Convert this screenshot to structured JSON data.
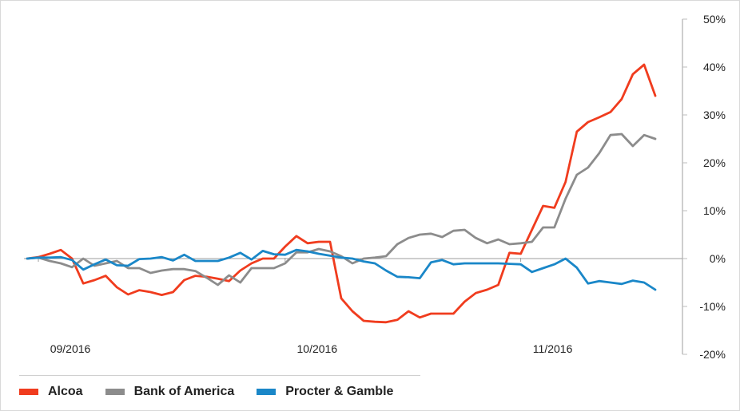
{
  "chart_data": {
    "type": "line",
    "x_tick_labels": [
      "09/2016",
      "10/2016",
      "11/2016"
    ],
    "y_ticks": [
      50,
      40,
      30,
      20,
      10,
      0,
      -10,
      -20
    ],
    "y_tick_labels": [
      "50%",
      "40%",
      "30%",
      "20%",
      "10%",
      "0%",
      "-10%",
      "-20%"
    ],
    "ylim": [
      -20,
      50
    ],
    "y_axis_side": "right",
    "grid": false,
    "zero_line": true,
    "legend_position": "bottom-left",
    "series": [
      {
        "name": "Alcoa",
        "color": "#f03c1e",
        "values": [
          0,
          0.3,
          1,
          1.8,
          0,
          -5.2,
          -4.5,
          -3.6,
          -6,
          -7.5,
          -6.6,
          -7,
          -7.6,
          -7,
          -4.5,
          -3.6,
          -3.8,
          -4.2,
          -4.7,
          -2.5,
          -1,
          0,
          0,
          2.5,
          4.7,
          3.2,
          3.5,
          3.5,
          -8.3,
          -11,
          -13,
          -13.2,
          -13.3,
          -12.8,
          -11,
          -12.3,
          -11.5,
          -11.5,
          -11.5,
          -9,
          -7.2,
          -6.5,
          -5.5,
          1.2,
          1,
          6,
          11,
          10.6,
          16,
          26.5,
          28.5,
          29.5,
          30.6,
          33.3,
          38.5,
          40.5,
          34
        ]
      },
      {
        "name": "Bank of America",
        "color": "#8c8c8c",
        "values": [
          0,
          0.2,
          -0.5,
          -1,
          -1.8,
          0,
          -1.5,
          -1,
          -0.5,
          -2,
          -2,
          -3,
          -2.5,
          -2.2,
          -2.2,
          -2.6,
          -4,
          -5.5,
          -3.5,
          -5,
          -2,
          -2,
          -2,
          -1,
          1.3,
          1.3,
          2,
          1.5,
          0.5,
          -1,
          0,
          0.2,
          0.5,
          3,
          4.3,
          5,
          5.2,
          4.5,
          5.8,
          6,
          4.3,
          3.2,
          4,
          3,
          3.2,
          3.5,
          6.5,
          6.5,
          12.5,
          17.5,
          19,
          22,
          25.8,
          26,
          23.5,
          25.8,
          25
        ]
      },
      {
        "name": "Procter & Gamble",
        "color": "#1a87c8",
        "values": [
          0,
          0.2,
          0.2,
          0.3,
          -0.3,
          -2.3,
          -1.2,
          -0.2,
          -1.4,
          -1.5,
          -0.1,
          0,
          0.3,
          -0.4,
          0.8,
          -0.5,
          -0.5,
          -0.5,
          0.2,
          1.2,
          -0.2,
          1.6,
          0.9,
          0.8,
          1.8,
          1.5,
          1,
          0.6,
          0.2,
          0,
          -0.6,
          -1,
          -2.5,
          -3.8,
          -3.9,
          -4.1,
          -0.8,
          -0.3,
          -1.2,
          -1,
          -1,
          -1,
          -1,
          -1.1,
          -1.2,
          -2.8,
          -2,
          -1.2,
          0,
          -1.9,
          -5.2,
          -4.7,
          -5,
          -5.3,
          -4.6,
          -5,
          -6.5
        ]
      }
    ]
  }
}
